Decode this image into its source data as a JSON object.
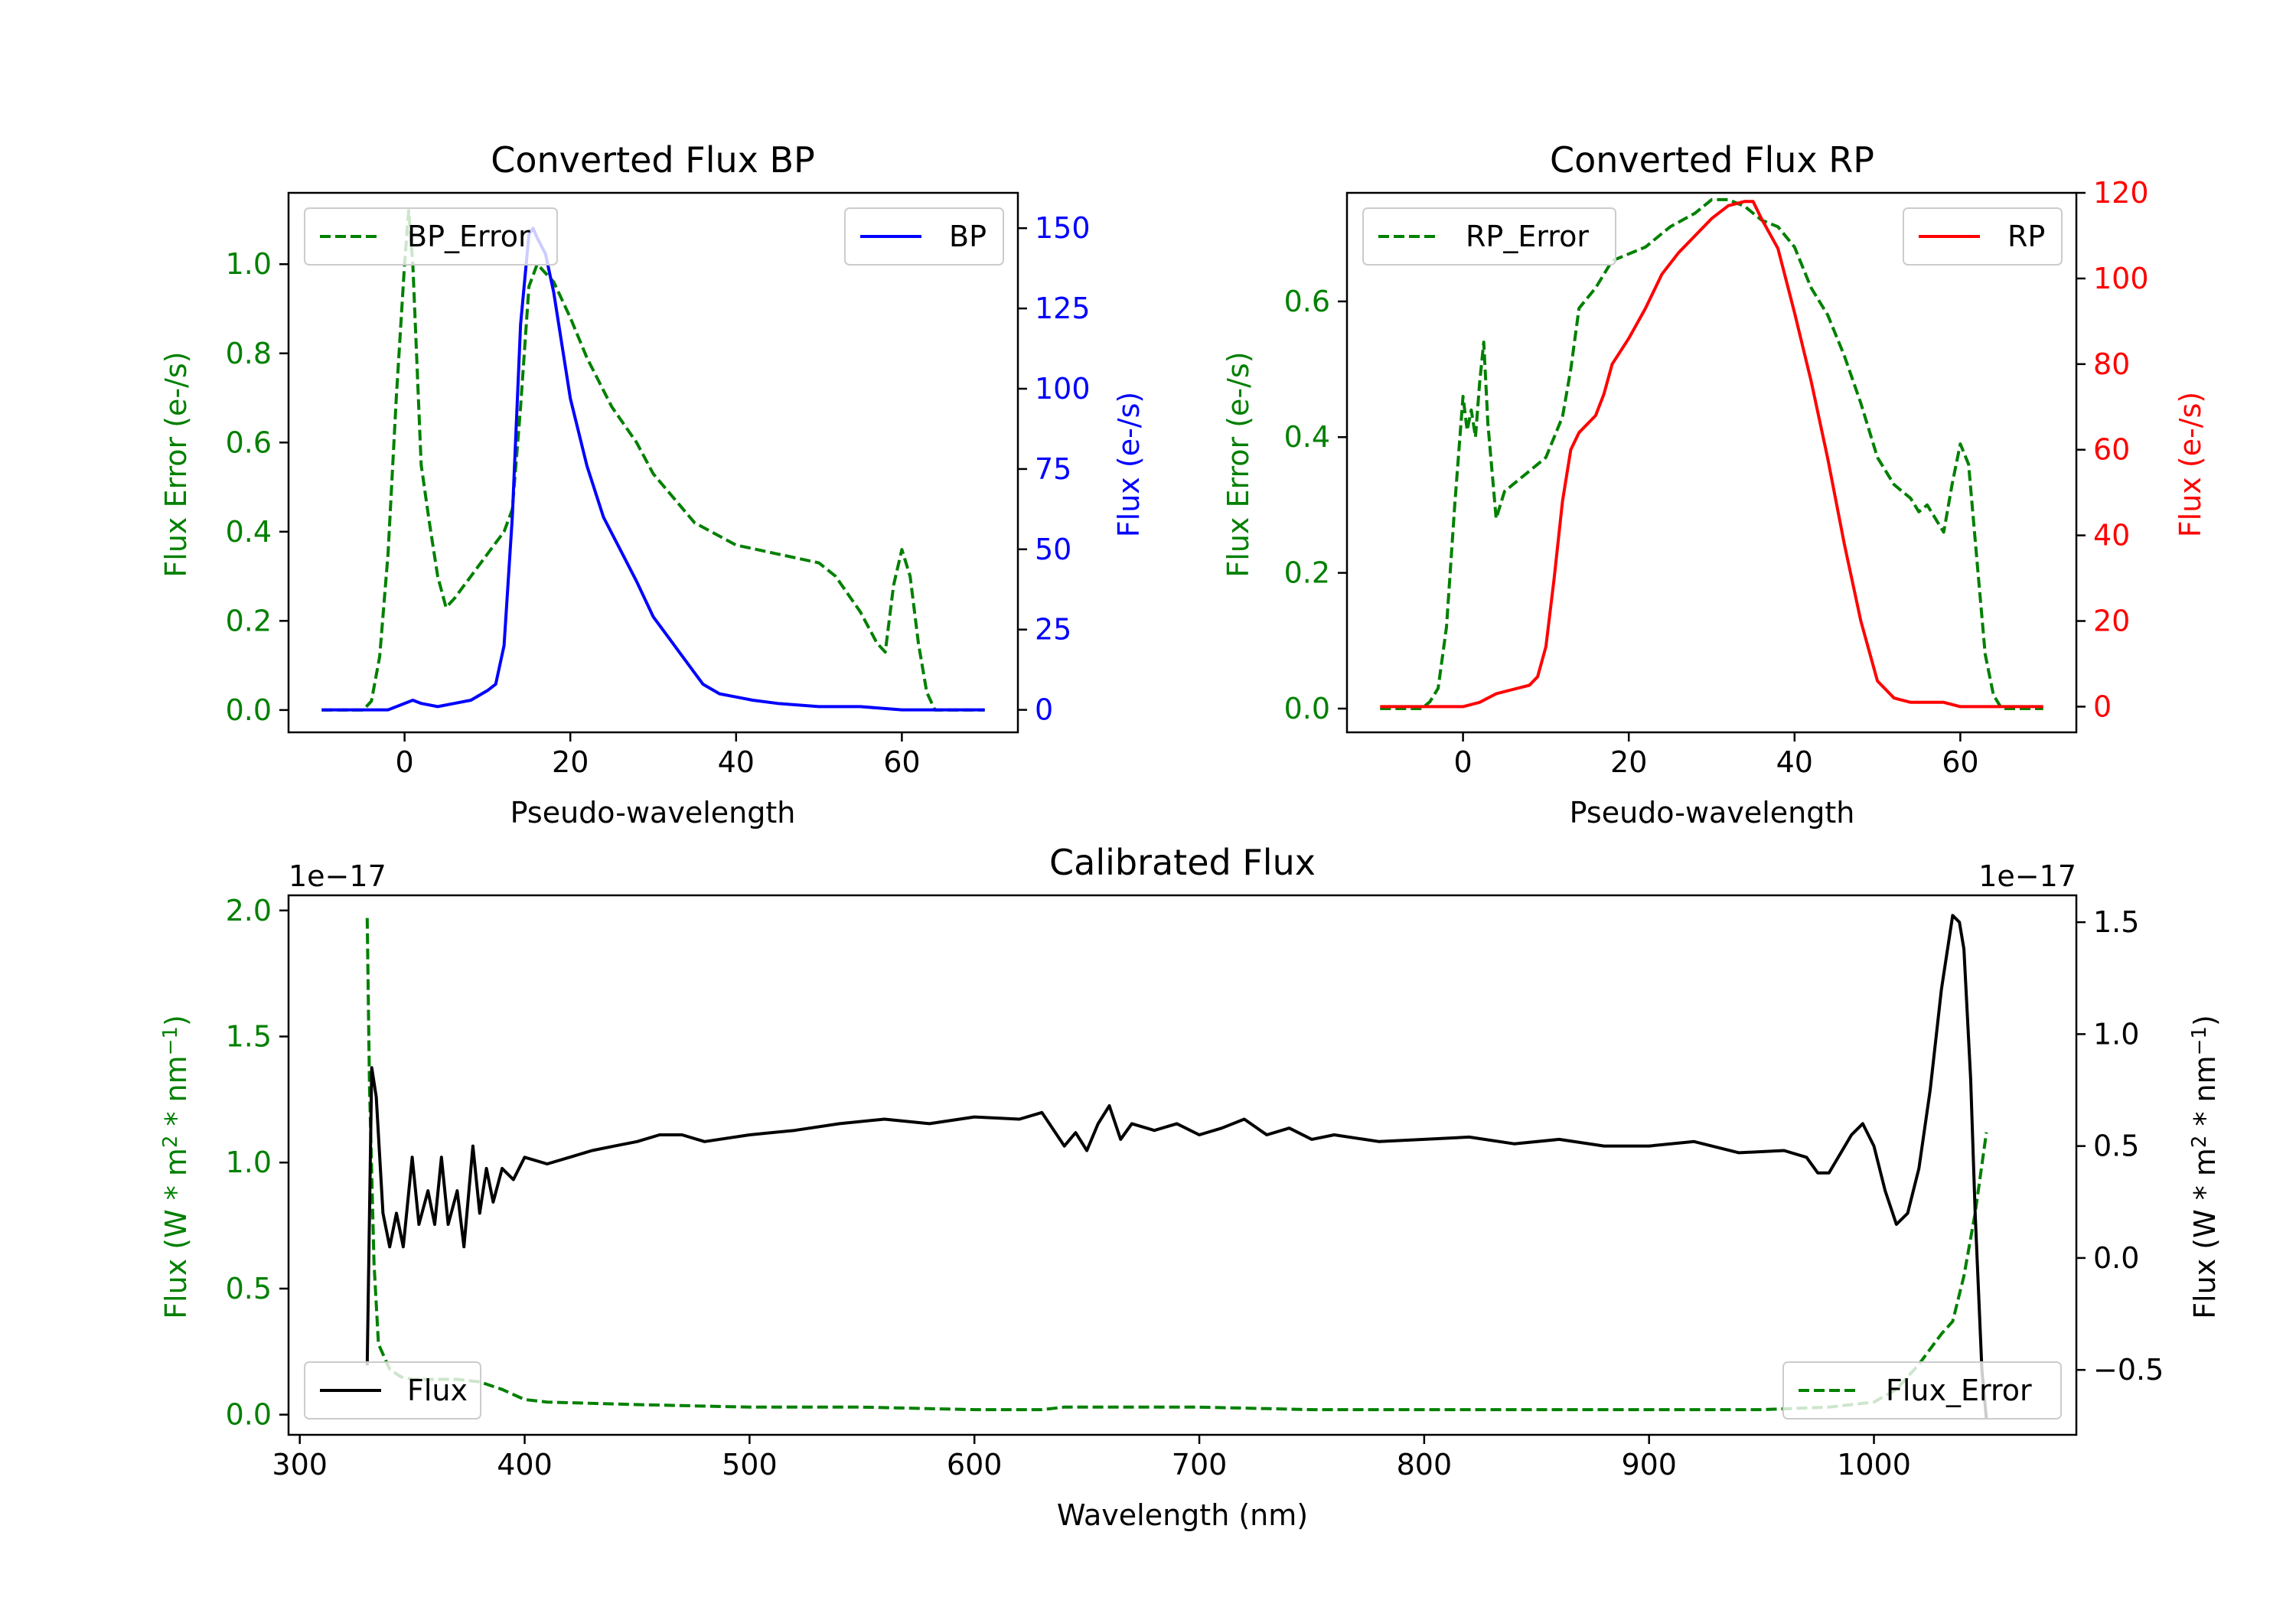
{
  "colors": {
    "bp": "#0000ff",
    "rp": "#ff0000",
    "error": "#008000",
    "flux": "#000000",
    "axis": "#000000"
  },
  "chart_data": [
    {
      "type": "line",
      "title": "Converted Flux BP",
      "xlabel": "Pseudo-wavelength",
      "xlim": [
        -14,
        74
      ],
      "xticks": [
        0,
        20,
        40,
        60
      ],
      "left_axis": {
        "label": "Flux Error (e-/s)",
        "ylim": [
          -0.05,
          1.16
        ],
        "ticks": [
          0.0,
          0.2,
          0.4,
          0.6,
          0.8,
          1.0
        ],
        "tick_labels": [
          "0.0",
          "0.2",
          "0.4",
          "0.6",
          "0.8",
          "1.0"
        ]
      },
      "right_axis": {
        "label": "Flux (e-/s)",
        "ylim": [
          -7,
          161
        ],
        "ticks": [
          0,
          25,
          50,
          75,
          100,
          125,
          150
        ],
        "tick_labels": [
          "0",
          "25",
          "50",
          "75",
          "100",
          "125",
          "150"
        ]
      },
      "series": [
        {
          "name": "BP_Error",
          "axis": "left",
          "style": "dashed",
          "color": "#008000",
          "legend": "top-left",
          "x": [
            -10,
            -5,
            -4,
            -3,
            -2,
            -1,
            0,
            0.5,
            1,
            2,
            3,
            4,
            5,
            6,
            8,
            10,
            12,
            13,
            14,
            15,
            16,
            18,
            20,
            22,
            25,
            28,
            30,
            35,
            38,
            40,
            45,
            50,
            52,
            55,
            57,
            58,
            59,
            60,
            61,
            62,
            63,
            64,
            65,
            70
          ],
          "y": [
            0.0,
            0.0,
            0.02,
            0.12,
            0.35,
            0.7,
            1.0,
            1.12,
            1.0,
            0.55,
            0.42,
            0.3,
            0.23,
            0.25,
            0.3,
            0.35,
            0.4,
            0.45,
            0.68,
            0.95,
            1.0,
            0.96,
            0.88,
            0.79,
            0.68,
            0.6,
            0.53,
            0.42,
            0.39,
            0.37,
            0.35,
            0.33,
            0.3,
            0.22,
            0.15,
            0.13,
            0.28,
            0.36,
            0.3,
            0.15,
            0.04,
            0.0,
            0.0,
            0.0
          ],
          "values_label": ""
        },
        {
          "name": "BP",
          "axis": "right",
          "style": "solid",
          "color": "#0000ff",
          "legend": "top-right",
          "x": [
            -10,
            -2,
            0,
            1,
            2,
            4,
            6,
            8,
            10,
            11,
            12,
            13,
            14,
            15,
            15.5,
            16,
            17,
            18,
            20,
            22,
            24,
            26,
            28,
            30,
            32,
            34,
            36,
            38,
            40,
            42,
            45,
            50,
            55,
            60,
            65,
            70
          ],
          "y": [
            0,
            0,
            2,
            3,
            2,
            1,
            2,
            3,
            6,
            8,
            20,
            60,
            120,
            148,
            150,
            147,
            142,
            130,
            97,
            76,
            60,
            50,
            40,
            29,
            22,
            15,
            8,
            5,
            4,
            3,
            2,
            1,
            1,
            0,
            0,
            0
          ]
        }
      ]
    },
    {
      "type": "line",
      "title": "Converted Flux RP",
      "xlabel": "Pseudo-wavelength",
      "xlim": [
        -14,
        74
      ],
      "xticks": [
        0,
        20,
        40,
        60
      ],
      "left_axis": {
        "label": "Flux Error (e-/s)",
        "ylim": [
          -0.035,
          0.76
        ],
        "ticks": [
          0.0,
          0.2,
          0.4,
          0.6
        ],
        "tick_labels": [
          "0.0",
          "0.2",
          "0.4",
          "0.6"
        ]
      },
      "right_axis": {
        "label": "Flux (e-/s)",
        "ylim": [
          -6,
          120
        ],
        "ticks": [
          0,
          20,
          40,
          60,
          80,
          100,
          120
        ],
        "tick_labels": [
          "0",
          "20",
          "40",
          "60",
          "80",
          "100",
          "120"
        ]
      },
      "series": [
        {
          "name": "RP_Error",
          "axis": "right_scale_none",
          "style": "dashed",
          "color": "#008000",
          "legend": "top-left",
          "axis_ref": "left",
          "x": [
            -10,
            -5,
            -4,
            -3,
            -2,
            -1,
            0,
            0.5,
            1,
            1.5,
            2,
            2.5,
            3,
            4,
            5,
            6,
            8,
            10,
            12,
            13,
            14,
            16,
            18,
            20,
            22,
            25,
            28,
            30,
            32,
            34,
            36,
            38,
            40,
            42,
            44,
            46,
            48,
            50,
            52,
            54,
            55,
            56,
            57,
            58,
            59,
            60,
            61,
            62,
            63,
            64,
            65,
            70
          ],
          "y": [
            0.0,
            0.0,
            0.01,
            0.03,
            0.12,
            0.3,
            0.46,
            0.41,
            0.44,
            0.4,
            0.48,
            0.54,
            0.42,
            0.28,
            0.32,
            0.33,
            0.35,
            0.37,
            0.43,
            0.5,
            0.59,
            0.62,
            0.66,
            0.67,
            0.68,
            0.71,
            0.73,
            0.75,
            0.75,
            0.74,
            0.72,
            0.71,
            0.68,
            0.62,
            0.58,
            0.52,
            0.45,
            0.37,
            0.33,
            0.31,
            0.29,
            0.3,
            0.28,
            0.26,
            0.33,
            0.39,
            0.36,
            0.22,
            0.08,
            0.02,
            0.0,
            0.0
          ]
        },
        {
          "name": "RP",
          "axis": "right",
          "style": "solid",
          "color": "#ff0000",
          "legend": "top-right",
          "x": [
            -10,
            0,
            2,
            4,
            6,
            8,
            9,
            10,
            11,
            12,
            13,
            14,
            15,
            16,
            17,
            18,
            20,
            22,
            24,
            26,
            28,
            30,
            32,
            34,
            35,
            36,
            38,
            40,
            42,
            44,
            46,
            48,
            50,
            52,
            54,
            56,
            58,
            60,
            62,
            65,
            70
          ],
          "y": [
            0,
            0,
            1,
            3,
            4,
            5,
            7,
            14,
            30,
            48,
            60,
            64,
            66,
            68,
            73,
            80,
            86,
            93,
            101,
            106,
            110,
            114,
            117,
            118,
            118,
            114,
            107,
            92,
            76,
            58,
            38,
            20,
            6,
            2,
            1,
            1,
            1,
            0,
            0,
            0,
            0
          ]
        }
      ]
    },
    {
      "type": "line",
      "title": "Calibrated Flux",
      "xlabel": "Wavelength (nm)",
      "xlim": [
        295,
        1090
      ],
      "xticks": [
        300,
        400,
        500,
        600,
        700,
        800,
        900,
        1000
      ],
      "left_axis": {
        "label": "Flux (W * m² * nm⁻¹)",
        "offset_text": "1e−17",
        "ylim": [
          -0.08,
          2.06
        ],
        "ticks": [
          0.0,
          0.5,
          1.0,
          1.5,
          2.0
        ],
        "tick_labels": [
          "0.0",
          "0.5",
          "1.0",
          "1.5",
          "2.0"
        ]
      },
      "right_axis": {
        "label": "Flux (W * m² * nm⁻¹)",
        "offset_text": "1e−17",
        "ylim": [
          -0.79,
          1.62
        ],
        "ticks": [
          -0.5,
          0.0,
          0.5,
          1.0,
          1.5
        ],
        "tick_labels": [
          "−0.5",
          "0.0",
          "0.5",
          "1.0",
          "1.5"
        ]
      },
      "series": [
        {
          "name": "Flux_Error",
          "axis": "left",
          "style": "dashed",
          "color": "#008000",
          "legend": "bottom-right",
          "x": [
            330,
            331,
            333,
            335,
            340,
            345,
            350,
            360,
            370,
            380,
            390,
            400,
            410,
            450,
            500,
            550,
            600,
            630,
            640,
            700,
            750,
            800,
            900,
            950,
            980,
            1000,
            1010,
            1020,
            1030,
            1035,
            1040,
            1045,
            1050
          ],
          "y": [
            1.97,
            1.3,
            0.6,
            0.28,
            0.18,
            0.15,
            0.14,
            0.14,
            0.14,
            0.13,
            0.1,
            0.06,
            0.05,
            0.04,
            0.03,
            0.03,
            0.02,
            0.02,
            0.03,
            0.03,
            0.02,
            0.02,
            0.02,
            0.02,
            0.03,
            0.05,
            0.1,
            0.2,
            0.32,
            0.37,
            0.55,
            0.8,
            1.12
          ]
        },
        {
          "name": "Flux",
          "axis": "right",
          "style": "solid",
          "color": "#000000",
          "legend": "bottom-left",
          "x": [
            330,
            332,
            334,
            337,
            340,
            343,
            346,
            350,
            353,
            357,
            360,
            363,
            366,
            370,
            373,
            377,
            380,
            383,
            386,
            390,
            395,
            400,
            410,
            420,
            430,
            440,
            450,
            460,
            470,
            480,
            500,
            520,
            540,
            560,
            580,
            600,
            620,
            630,
            640,
            645,
            650,
            655,
            660,
            665,
            670,
            680,
            690,
            700,
            710,
            720,
            730,
            740,
            750,
            760,
            780,
            800,
            820,
            840,
            860,
            880,
            900,
            920,
            940,
            960,
            970,
            975,
            980,
            990,
            995,
            1000,
            1005,
            1010,
            1015,
            1020,
            1025,
            1030,
            1035,
            1038,
            1040,
            1043,
            1045,
            1048,
            1050
          ],
          "y": [
            -0.48,
            0.85,
            0.72,
            0.2,
            0.05,
            0.2,
            0.05,
            0.45,
            0.15,
            0.3,
            0.15,
            0.45,
            0.15,
            0.3,
            0.05,
            0.5,
            0.2,
            0.4,
            0.25,
            0.4,
            0.35,
            0.45,
            0.42,
            0.45,
            0.48,
            0.5,
            0.52,
            0.55,
            0.55,
            0.52,
            0.55,
            0.57,
            0.6,
            0.62,
            0.6,
            0.63,
            0.62,
            0.65,
            0.5,
            0.56,
            0.48,
            0.6,
            0.68,
            0.53,
            0.6,
            0.57,
            0.6,
            0.55,
            0.58,
            0.62,
            0.55,
            0.58,
            0.53,
            0.55,
            0.52,
            0.53,
            0.54,
            0.51,
            0.53,
            0.5,
            0.5,
            0.52,
            0.47,
            0.48,
            0.45,
            0.38,
            0.38,
            0.55,
            0.6,
            0.5,
            0.3,
            0.15,
            0.2,
            0.4,
            0.75,
            1.2,
            1.53,
            1.5,
            1.38,
            0.8,
            0.2,
            -0.5,
            -0.72
          ]
        }
      ]
    }
  ]
}
